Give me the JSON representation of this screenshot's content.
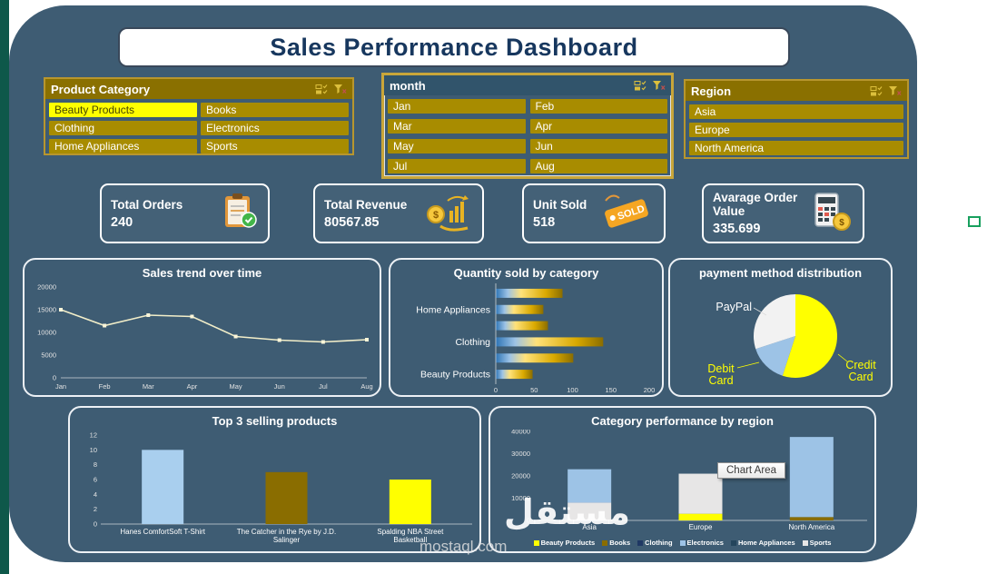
{
  "title": "Sales Performance Dashboard",
  "slicers": [
    {
      "title": "Product Category",
      "columns": 2,
      "items": [
        {
          "label": "Beauty Products",
          "selected": true
        },
        {
          "label": "Books",
          "selected": false
        },
        {
          "label": "Clothing",
          "selected": false
        },
        {
          "label": "Electronics",
          "selected": false
        },
        {
          "label": "Home Appliances",
          "selected": false
        },
        {
          "label": "Sports",
          "selected": false
        }
      ]
    },
    {
      "title": "month",
      "columns": 2,
      "items": [
        {
          "label": "Jan",
          "selected": false
        },
        {
          "label": "Feb",
          "selected": false
        },
        {
          "label": "Mar",
          "selected": false
        },
        {
          "label": "Apr",
          "selected": false
        },
        {
          "label": "May",
          "selected": false
        },
        {
          "label": "Jun",
          "selected": false
        },
        {
          "label": "Jul",
          "selected": false
        },
        {
          "label": "Aug",
          "selected": false
        }
      ]
    },
    {
      "title": "Region",
      "columns": 1,
      "items": [
        {
          "label": "Asia",
          "selected": false
        },
        {
          "label": "Europe",
          "selected": false
        },
        {
          "label": "North America",
          "selected": false
        }
      ]
    }
  ],
  "kpis": [
    {
      "label": "Total Orders",
      "value": "240",
      "icon": "clipboard-check-icon"
    },
    {
      "label": "Total Revenue",
      "value": "80567.85",
      "icon": "money-growth-icon"
    },
    {
      "label": "Unit Sold",
      "value": "518",
      "icon": "sold-tag-icon"
    },
    {
      "label": "Avarage Order Value",
      "value": "335.699",
      "icon": "calculator-coin-icon"
    }
  ],
  "chart_data": [
    {
      "type": "line",
      "title": "Sales trend over time",
      "x": [
        "Jan",
        "Feb",
        "Mar",
        "Apr",
        "May",
        "Jun",
        "Jul",
        "Aug"
      ],
      "series": [
        {
          "name": "Sales",
          "values": [
            15000,
            11500,
            13800,
            13500,
            9100,
            8300,
            7900,
            8400
          ]
        }
      ],
      "ylim": [
        0,
        20000
      ],
      "yticks": [
        0,
        5000,
        10000,
        15000,
        20000
      ],
      "line_color": "#f2eec9",
      "grid": false,
      "legend_position": "none"
    },
    {
      "type": "bar",
      "orientation": "horizontal",
      "title": "Quantity sold by category",
      "categories": [
        "",
        "Home Appliances",
        "",
        "Clothing",
        "",
        "Beauty Products"
      ],
      "values": [
        87,
        62,
        68,
        140,
        101,
        48
      ],
      "xlim": [
        0,
        200
      ],
      "xticks": [
        0,
        50,
        100,
        150,
        200
      ],
      "bar_gradient": [
        "#2e75b6",
        "#9dc3e6",
        "#ffe27a",
        "#d9a900",
        "#8a6d00"
      ],
      "grid": false,
      "legend_position": "none"
    },
    {
      "type": "pie",
      "title": "payment method distribution",
      "slices": [
        {
          "label": "Credit Card",
          "value": 55,
          "color": "#ffff00"
        },
        {
          "label": "Debit Card",
          "value": 15,
          "color": "#9dc3e6"
        },
        {
          "label": "PayPal",
          "value": 30,
          "color": "#f2f2f2"
        }
      ],
      "label_colors": {
        "Credit Card": "#ffff00",
        "Debit Card": "#ffff00",
        "PayPal": "#ffffff"
      },
      "legend_position": "labels-outside"
    },
    {
      "type": "bar",
      "orientation": "vertical",
      "title": "Top 3 selling products",
      "categories": [
        "Hanes ComfortSoft T-Shirt",
        "The Catcher in the Rye by J.D. Salinger",
        "Spalding NBA Street Basketball"
      ],
      "label_lines": [
        [
          "Hanes ComfortSoft T-Shirt"
        ],
        [
          "The Catcher in the Rye by J.D.",
          "Salinger"
        ],
        [
          "Spalding NBA Street",
          "Basketball"
        ]
      ],
      "values": [
        10,
        7,
        6
      ],
      "bar_colors": [
        "#a9cfee",
        "#8a6d00",
        "#ffff00"
      ],
      "ylim": [
        0,
        12
      ],
      "yticks": [
        0,
        2,
        4,
        6,
        8,
        10,
        12
      ],
      "grid": false,
      "legend_position": "none"
    },
    {
      "type": "stacked-bar",
      "title": "Category performance by region",
      "categories": [
        "Asia",
        "Europe",
        "North America"
      ],
      "ylim": [
        0,
        40000
      ],
      "yticks": [
        0,
        10000,
        20000,
        30000,
        40000
      ],
      "legend": [
        {
          "name": "Beauty Products",
          "color": "#ffff00"
        },
        {
          "name": "Books",
          "color": "#8a6d00"
        },
        {
          "name": "Clothing",
          "color": "#1f3864"
        },
        {
          "name": "Electronics",
          "color": "#9dc3e6"
        },
        {
          "name": "Home Appliances",
          "color": "#24455c"
        },
        {
          "name": "Sports",
          "color": "#e7e6e6"
        }
      ],
      "bars": [
        {
          "category": "Asia",
          "segments": [
            {
              "name": "Sports",
              "value": 8000
            },
            {
              "name": "Electronics",
              "value": 15000
            }
          ]
        },
        {
          "category": "Europe",
          "segments": [
            {
              "name": "Beauty Products",
              "value": 3000
            },
            {
              "name": "Sports",
              "value": 18000
            }
          ]
        },
        {
          "category": "North America",
          "segments": [
            {
              "name": "Books",
              "value": 1500
            },
            {
              "name": "Electronics",
              "value": 36000
            }
          ]
        }
      ],
      "legend_position": "bottom"
    }
  ],
  "tooltip": {
    "text": "Chart Area"
  },
  "watermark": {
    "line1": "مستقل",
    "line2": "mostaql.com"
  }
}
